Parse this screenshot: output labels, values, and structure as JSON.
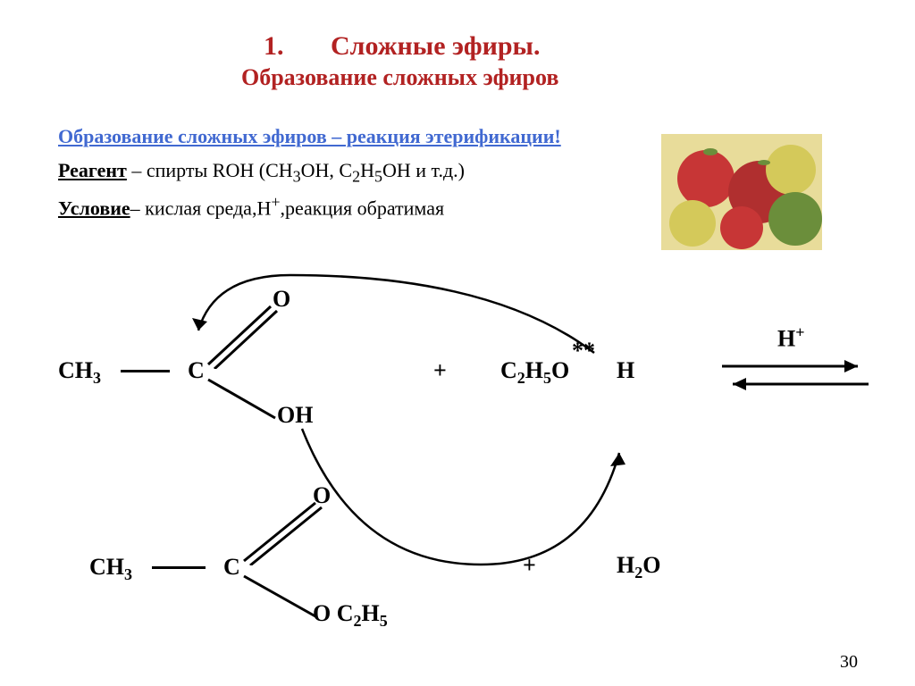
{
  "slide": {
    "number_text": "1.",
    "title": "Сложные эфиры.",
    "subtitle": "Образование сложных эфиров",
    "body1": "Образование сложных эфиров – реакция этерификации!",
    "body2a": "Реагент",
    "body2b": " – спирты ROH (CH",
    "body2sub1": "3",
    "body2c": "OH, C",
    "body2sub2": "2",
    "body2d": "H",
    "body2sub3": "5",
    "body2e": "OH и т.д.)",
    "body3a": "Условие",
    "body3b": "– кислая среда,H",
    "body3sup": "+",
    "body3c": ",реакция обратимая",
    "pagenum": "30"
  },
  "chem": {
    "r1": {
      "ch3": "CH",
      "ch3sub": "3",
      "c": "C",
      "o": "O",
      "oh": "OH"
    },
    "plus1": "+",
    "r2": {
      "text": "C",
      "sub1": "2",
      "h": "H",
      "sub2": "5",
      "o": "O",
      "stars": "**",
      "hlast": "H"
    },
    "arrow": {
      "hplus": "H",
      "hsup": "+"
    },
    "p": {
      "ch3": "CH",
      "ch3sub": "3",
      "c": "C",
      "o": "O",
      "oc": "O C",
      "sub1": "2",
      "h": "H",
      "sub2": "5"
    },
    "plus2": "+",
    "h2o": {
      "h": "H",
      "sub1": "2",
      "o": "O"
    }
  },
  "style": {
    "title_color": "#b22222",
    "title_fs": 30,
    "subtitle_fs": 26,
    "body1_color": "#4169d1",
    "body_fs": 22,
    "chem_fs": 26,
    "small_fs": 18,
    "text_color": "#000000"
  },
  "image": {
    "colors": [
      "#c73636",
      "#d4c95a",
      "#6b8e3b",
      "#e8dc9a",
      "#b02f2f"
    ]
  }
}
